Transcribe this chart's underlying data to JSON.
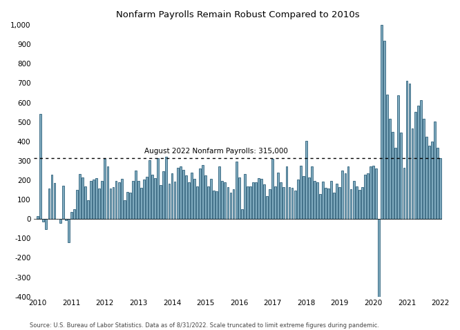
{
  "title": "Nonfarm Payrolls Remain Robust Compared to 2010s",
  "annotation": "August 2022 Nonfarm Payrolls: 315,000",
  "reference_line": 315,
  "source_text": "Source: U.S. Bureau of Labor Statistics. Data as of 8/31/2022. Scale truncated to limit extreme figures during pandemic.",
  "bar_color": "#7faabe",
  "bar_edge_color": "#2d5f7a",
  "ylim": [
    -400,
    1000
  ],
  "yticks": [
    -400,
    -300,
    -200,
    -100,
    0,
    100,
    200,
    300,
    400,
    500,
    600,
    700,
    800,
    900,
    1000
  ],
  "values": [
    14,
    541,
    -13,
    -52,
    158,
    229,
    186,
    0,
    -20,
    171,
    -5,
    -120,
    37,
    50,
    152,
    232,
    215,
    168,
    96,
    196,
    202,
    210,
    157,
    196,
    311,
    272,
    156,
    166,
    196,
    188,
    207,
    96,
    141,
    137,
    196,
    250,
    197,
    162,
    203,
    218,
    304,
    229,
    210,
    315,
    176,
    248,
    321,
    184,
    237,
    194,
    264,
    273,
    252,
    225,
    188,
    240,
    208,
    168,
    261,
    280,
    225,
    168,
    206,
    145,
    144,
    271,
    195,
    189,
    163,
    135,
    153,
    295,
    216,
    50,
    232,
    169,
    168,
    190,
    189,
    209,
    206,
    177,
    118,
    155,
    311,
    168,
    238,
    189,
    164,
    270,
    165,
    162,
    145,
    202,
    274,
    222,
    403,
    214,
    272,
    196,
    189,
    130,
    193,
    162,
    157,
    197,
    136,
    184,
    166,
    249,
    236,
    272,
    155,
    197,
    168,
    150,
    163,
    227,
    237,
    271,
    275,
    262,
    -420,
    1000,
    918,
    640,
    516,
    450,
    369,
    638,
    444,
    264,
    714,
    699,
    468,
    554,
    583,
    614,
    516,
    424,
    379,
    398,
    504,
    369,
    315
  ],
  "year_labels": [
    2010,
    2011,
    2012,
    2013,
    2014,
    2015,
    2016,
    2017,
    2018,
    2019,
    2020,
    2021,
    2022
  ],
  "year_tick_positions": [
    0,
    12,
    24,
    36,
    48,
    60,
    72,
    84,
    96,
    108,
    120,
    132,
    144
  ]
}
